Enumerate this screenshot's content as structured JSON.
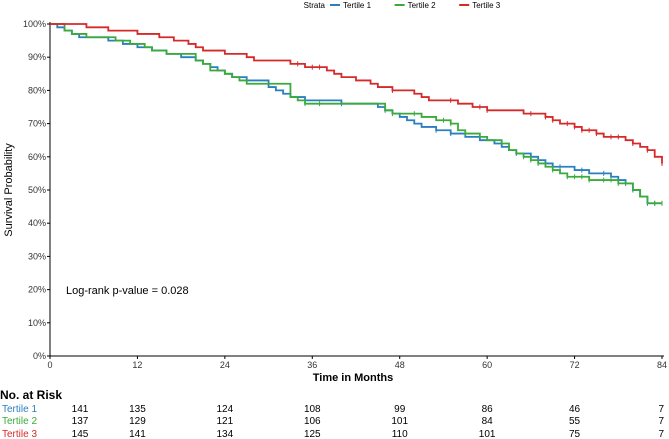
{
  "chart_data": {
    "type": "line",
    "title": "",
    "xlabel": "Time in Months",
    "ylabel": "Survival Probability",
    "xlim": [
      0,
      84
    ],
    "ylim": [
      0,
      100
    ],
    "x_ticks": [
      0,
      12,
      24,
      36,
      48,
      60,
      72,
      84
    ],
    "x_tick_labels": [
      "0",
      "12",
      "24",
      "36",
      "48",
      "60",
      "72",
      "84"
    ],
    "y_ticks": [
      0,
      10,
      20,
      30,
      40,
      50,
      60,
      70,
      80,
      90,
      100
    ],
    "y_tick_labels": [
      "0%",
      "10%",
      "20%",
      "30%",
      "40%",
      "50%",
      "60%",
      "70%",
      "80%",
      "90%",
      "100%"
    ],
    "legend": {
      "title": "Strata",
      "placement": "top-center",
      "entries": [
        "Tertile 1",
        "Tertile 2",
        "Tertile 3"
      ]
    },
    "annotation": "Log-rank p-value = 0.028",
    "series": [
      {
        "name": "Tertile 1",
        "color": "#2a7fc1",
        "step_points": [
          [
            0,
            100
          ],
          [
            1,
            99
          ],
          [
            2,
            98
          ],
          [
            3,
            97
          ],
          [
            4,
            96
          ],
          [
            8,
            95
          ],
          [
            10,
            94
          ],
          [
            12,
            93
          ],
          [
            14,
            92
          ],
          [
            16,
            91
          ],
          [
            18,
            90
          ],
          [
            20,
            89
          ],
          [
            21,
            88
          ],
          [
            22,
            87
          ],
          [
            23,
            86
          ],
          [
            24,
            85
          ],
          [
            25,
            84
          ],
          [
            27,
            83
          ],
          [
            30,
            81
          ],
          [
            31,
            80
          ],
          [
            32,
            79
          ],
          [
            33,
            78
          ],
          [
            35,
            77
          ],
          [
            40,
            76
          ],
          [
            45,
            75
          ],
          [
            46,
            74
          ],
          [
            47,
            73
          ],
          [
            48,
            72
          ],
          [
            49,
            71
          ],
          [
            50,
            70
          ],
          [
            51,
            69
          ],
          [
            53,
            68
          ],
          [
            55,
            67
          ],
          [
            57,
            66
          ],
          [
            59,
            65
          ],
          [
            61,
            64
          ],
          [
            62,
            63
          ],
          [
            63,
            62
          ],
          [
            64,
            61
          ],
          [
            66,
            60
          ],
          [
            67,
            59
          ],
          [
            68,
            58
          ],
          [
            69,
            57
          ],
          [
            72,
            56
          ],
          [
            74,
            55
          ],
          [
            77,
            54
          ],
          [
            78,
            53
          ],
          [
            79,
            52
          ],
          [
            80,
            50
          ],
          [
            81,
            48
          ],
          [
            82,
            46
          ],
          [
            84,
            46
          ]
        ],
        "censor_times": [
          40,
          46,
          53,
          55,
          64,
          66,
          68,
          69,
          70,
          73,
          76,
          78,
          79,
          80,
          82,
          83
        ]
      },
      {
        "name": "Tertile 2",
        "color": "#3aab3a",
        "step_points": [
          [
            0,
            100
          ],
          [
            2,
            98
          ],
          [
            3,
            97
          ],
          [
            5,
            96
          ],
          [
            9,
            95
          ],
          [
            11,
            94
          ],
          [
            13,
            93
          ],
          [
            14,
            92
          ],
          [
            16,
            91
          ],
          [
            20,
            89
          ],
          [
            21,
            88
          ],
          [
            22,
            86
          ],
          [
            24,
            85
          ],
          [
            25,
            84
          ],
          [
            26,
            83
          ],
          [
            27,
            82
          ],
          [
            33,
            78
          ],
          [
            34,
            77
          ],
          [
            35,
            76
          ],
          [
            46,
            74
          ],
          [
            47,
            73
          ],
          [
            51,
            72
          ],
          [
            53,
            71
          ],
          [
            55,
            70
          ],
          [
            56,
            68
          ],
          [
            57,
            67
          ],
          [
            59,
            66
          ],
          [
            60,
            65
          ],
          [
            62,
            64
          ],
          [
            63,
            62
          ],
          [
            64,
            61
          ],
          [
            65,
            60
          ],
          [
            66,
            59
          ],
          [
            67,
            58
          ],
          [
            68,
            57
          ],
          [
            69,
            56
          ],
          [
            70,
            55
          ],
          [
            71,
            54
          ],
          [
            74,
            53
          ],
          [
            78,
            52
          ],
          [
            80,
            50
          ],
          [
            81,
            48
          ],
          [
            82,
            46
          ],
          [
            84,
            46
          ]
        ],
        "censor_times": [
          35,
          37,
          47,
          50,
          54,
          55,
          57,
          65,
          66,
          67,
          69,
          71,
          72,
          73,
          74,
          76,
          77,
          78,
          79,
          83,
          84
        ]
      },
      {
        "name": "Tertile 3",
        "color": "#d62a2a",
        "step_points": [
          [
            0,
            100
          ],
          [
            5,
            99
          ],
          [
            8,
            98
          ],
          [
            12,
            97
          ],
          [
            15,
            96
          ],
          [
            17,
            95
          ],
          [
            19,
            94
          ],
          [
            20,
            93
          ],
          [
            21,
            92
          ],
          [
            24,
            91
          ],
          [
            27,
            90
          ],
          [
            28,
            89
          ],
          [
            33,
            88
          ],
          [
            35,
            87
          ],
          [
            38,
            86
          ],
          [
            39,
            85
          ],
          [
            40,
            84
          ],
          [
            42,
            83
          ],
          [
            44,
            82
          ],
          [
            45,
            81
          ],
          [
            47,
            80
          ],
          [
            50,
            79
          ],
          [
            51,
            78
          ],
          [
            52,
            77
          ],
          [
            56,
            76
          ],
          [
            58,
            75
          ],
          [
            60,
            74
          ],
          [
            65,
            73
          ],
          [
            68,
            72
          ],
          [
            69,
            71
          ],
          [
            70,
            70
          ],
          [
            72,
            69
          ],
          [
            73,
            68
          ],
          [
            75,
            67
          ],
          [
            76,
            66
          ],
          [
            79,
            65
          ],
          [
            80,
            64
          ],
          [
            81,
            63
          ],
          [
            82,
            62
          ],
          [
            83,
            60
          ],
          [
            84,
            58
          ]
        ],
        "censor_times": [
          34,
          36,
          37,
          47,
          55,
          59,
          60,
          66,
          68,
          69,
          71,
          72,
          73,
          74,
          75,
          77,
          78,
          80,
          82,
          84
        ]
      }
    ],
    "risk_table": {
      "title": "No. at Risk",
      "time_points": [
        0,
        12,
        24,
        36,
        48,
        60,
        72,
        84
      ],
      "rows": [
        {
          "label": "Tertile 1",
          "color": "#2a7fc1",
          "values": [
            141,
            135,
            124,
            108,
            99,
            86,
            46,
            7
          ]
        },
        {
          "label": "Tertile 2",
          "color": "#3aab3a",
          "values": [
            137,
            129,
            121,
            106,
            101,
            84,
            55,
            7
          ]
        },
        {
          "label": "Tertile 3",
          "color": "#d62a2a",
          "values": [
            145,
            141,
            134,
            125,
            110,
            101,
            75,
            7
          ]
        }
      ]
    }
  }
}
